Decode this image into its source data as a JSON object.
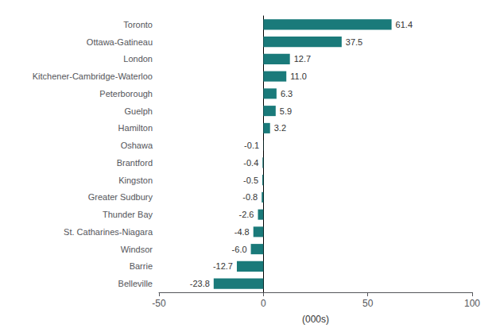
{
  "chart_data": {
    "type": "bar",
    "orientation": "horizontal",
    "categories": [
      "Belleville",
      "Barrie",
      "Windsor",
      "St. Catharines-Niagara",
      "Thunder Bay",
      "Greater Sudbury",
      "Kingston",
      "Brantford",
      "Oshawa",
      "Hamilton",
      "Guelph",
      "Peterborough",
      "Kitchener-Cambridge-Waterloo",
      "London",
      "Ottawa-Gatineau",
      "Toronto"
    ],
    "values": [
      -23.8,
      -12.7,
      -6.0,
      -4.8,
      -2.6,
      -0.8,
      -0.5,
      -0.4,
      -0.1,
      3.2,
      5.9,
      6.3,
      11.0,
      12.7,
      37.5,
      61.4
    ],
    "value_labels": [
      "-23.8",
      "-12.7",
      "-6.0",
      "-4.8",
      "-2.6",
      "-0.8",
      "-0.5",
      "-0.4",
      "-0.1",
      "3.2",
      "5.9",
      "6.3",
      "11.0",
      "12.7",
      "37.5",
      "61.4"
    ],
    "color": "#1a7a7a",
    "xlabel": "(000s)",
    "xlim": [
      -50,
      100
    ],
    "xticks": [
      -50,
      0,
      50,
      100
    ],
    "data_labels": true,
    "grid": false
  }
}
